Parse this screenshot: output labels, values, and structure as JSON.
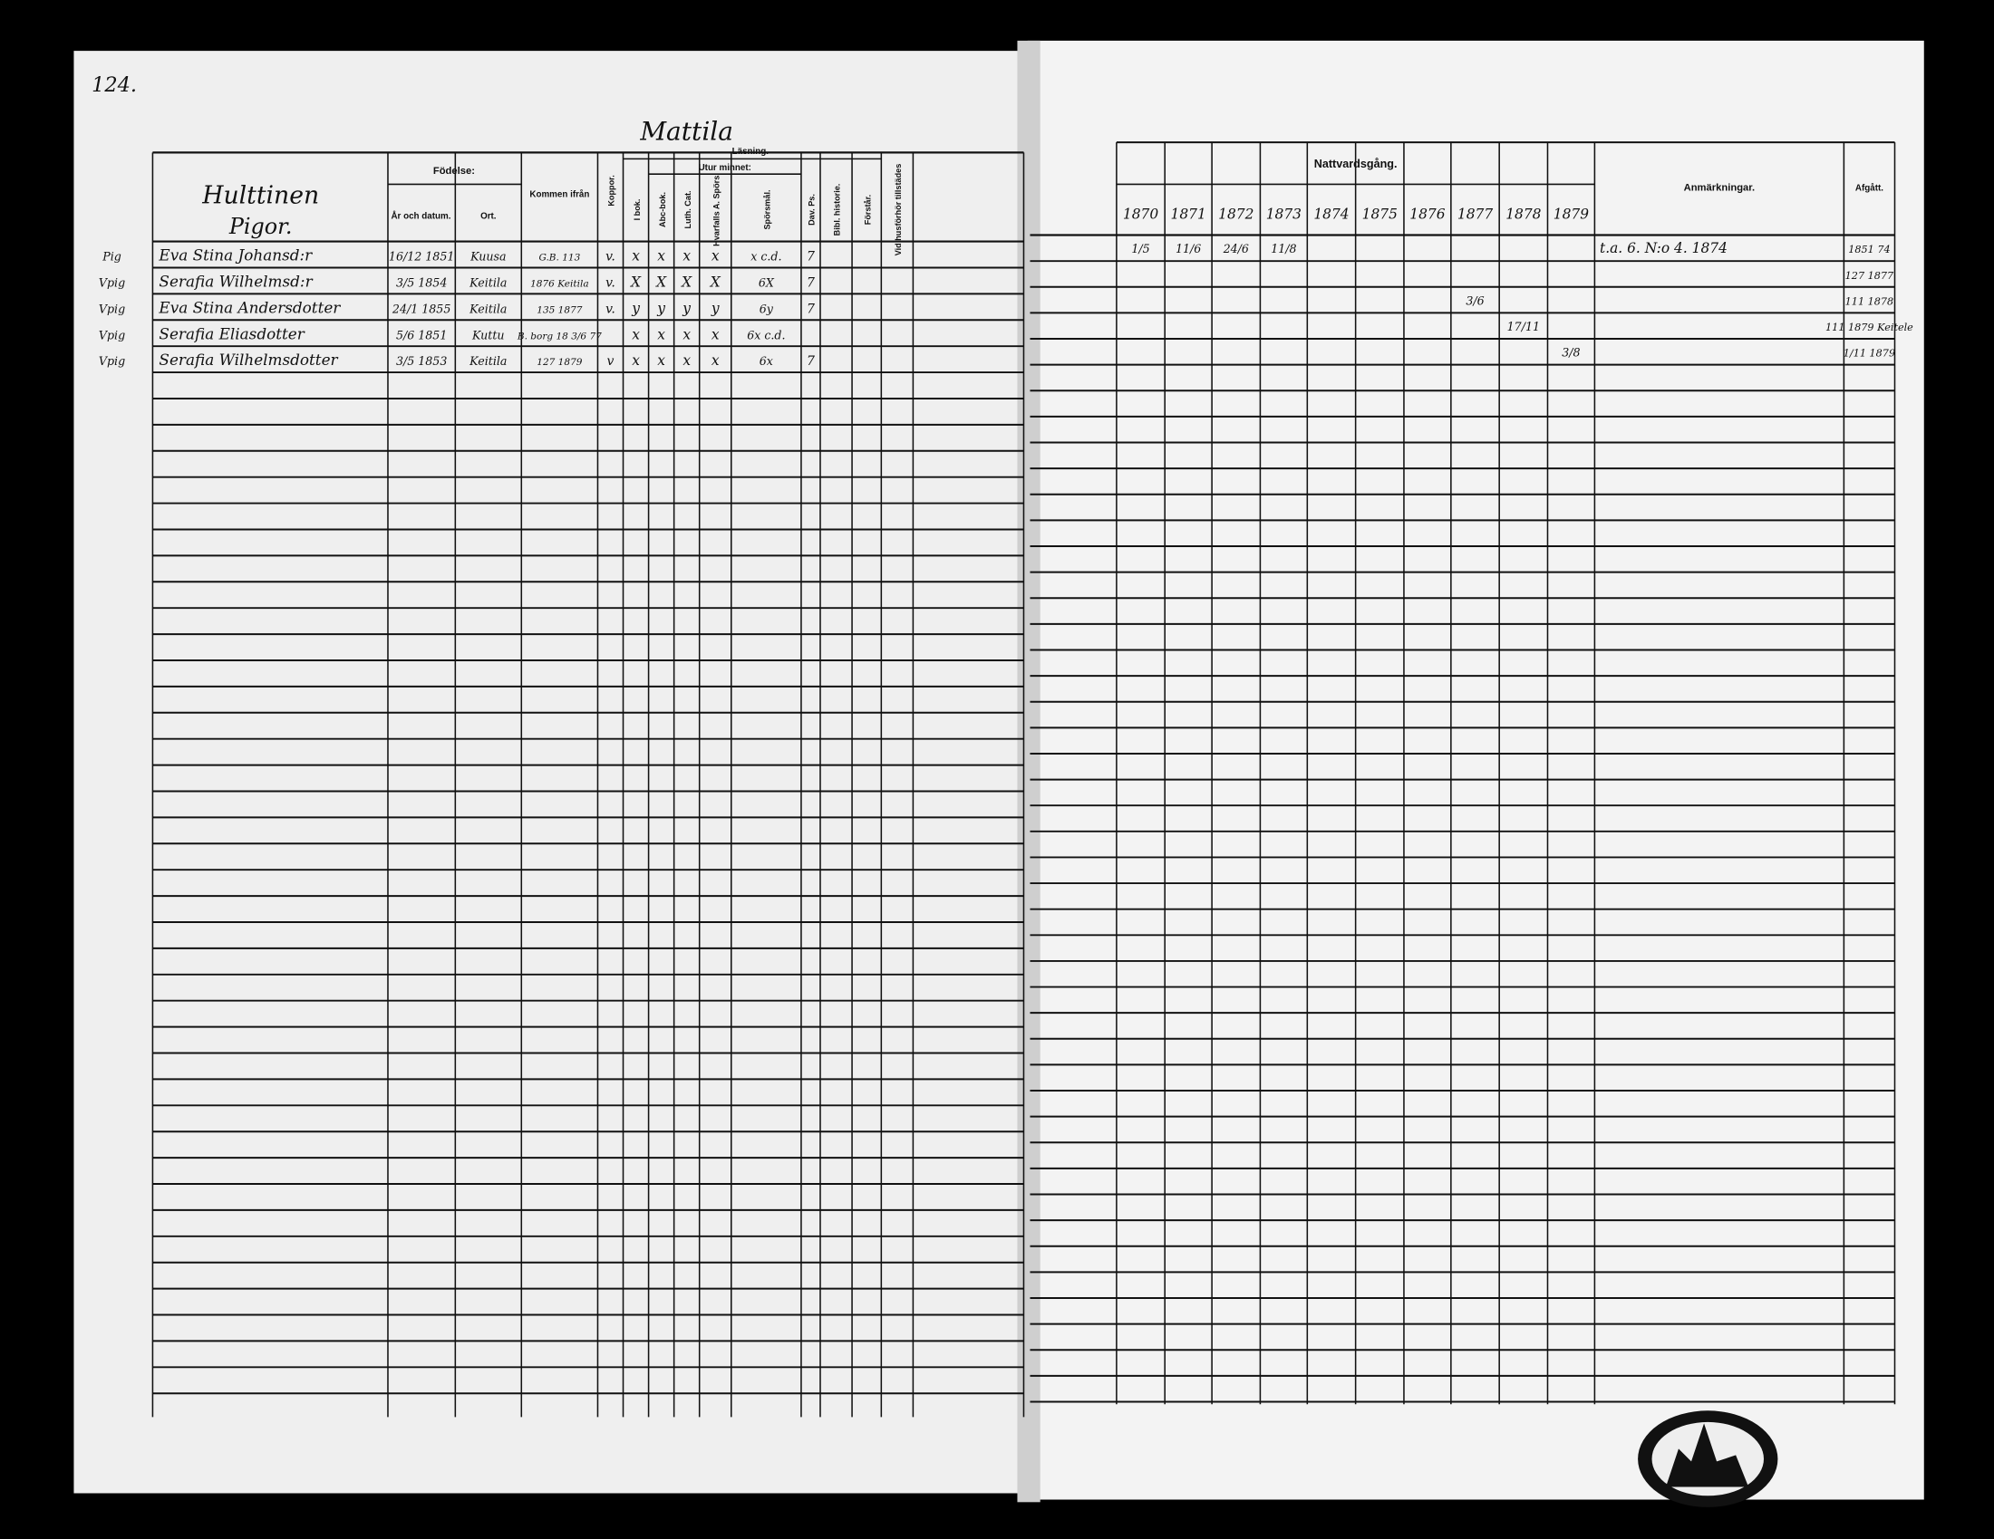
{
  "page_number": "124.",
  "farm": "Mattila",
  "left_header": {
    "household": "Hulttinen",
    "category": "Pigor."
  },
  "columns": {
    "birth": "Födelse:",
    "birth_date": "År och datum.",
    "birth_place": "Ort.",
    "came_from": "Kommen ifrån",
    "koppor": "Koppor.",
    "reading": "Läsning.",
    "from_memory": "Utur minnet:",
    "i_bok": "I bok.",
    "abc": "Abc-bok.",
    "luth": "Luth. Cat.",
    "hvarf": "Hvarfalls A. Spörs.",
    "spors": "Spörsmål.",
    "dav": "Dav. Ps.",
    "bibl": "Bibl. historie.",
    "forstar": "Förstår.",
    "husforhor": "Vid husförhör tillstädes"
  },
  "right_header": {
    "title": "Nattvardsgång.",
    "years": [
      "1870",
      "1871",
      "1872",
      "1873",
      "1874",
      "1875",
      "1876",
      "1877",
      "1878",
      "1879"
    ],
    "remarks": "Anmärkningar.",
    "departed": "Afgått."
  },
  "rows": [
    {
      "status": "Pig",
      "name": "Eva Stina Johansd:r",
      "date": "16/12 1851",
      "place": "Kuusa",
      "came_from": "G.B. 113",
      "koppor": "v.",
      "reading": [
        "x",
        "x",
        "x",
        "x"
      ],
      "spors": "x c.d.",
      "dav": "7",
      "communion": [
        "1/5",
        "11/6",
        "24/6",
        "11/8",
        null,
        null,
        null,
        null,
        null,
        null
      ],
      "remarks": "t.a. 6. N:o 4. 1874",
      "departed": "1851 74"
    },
    {
      "status": "Vpig",
      "name": "Serafia Wilhelmsd:r",
      "date": "3/5 1854",
      "place": "Keitila",
      "came_from": "1876 Keitila",
      "koppor": "v.",
      "reading": [
        "X",
        "X",
        "X",
        "X"
      ],
      "spors": "6X",
      "dav": "7",
      "communion": [
        null,
        null,
        null,
        null,
        null,
        null,
        null,
        null,
        null,
        null
      ],
      "remarks": null,
      "departed": "127 1877"
    },
    {
      "status": "Vpig",
      "name": "Eva Stina Andersdotter",
      "date": "24/1 1855",
      "place": "Keitila",
      "came_from": "135 1877",
      "koppor": "v.",
      "reading": [
        "y",
        "y",
        "y",
        "y"
      ],
      "spors": "6y",
      "dav": "7",
      "communion": [
        null,
        null,
        null,
        null,
        null,
        null,
        null,
        "3/6",
        null,
        null
      ],
      "remarks": null,
      "departed": "111 1878"
    },
    {
      "status": "Vpig",
      "name": "Serafia Eliasdotter",
      "date": "5/6 1851",
      "place": "Kuttu",
      "came_from": "B. borg 18 3/6 77",
      "koppor": null,
      "reading": [
        "x",
        "x",
        "x",
        "x"
      ],
      "spors": "6x c.d.",
      "dav": null,
      "communion": [
        null,
        null,
        null,
        null,
        null,
        null,
        null,
        null,
        "17/11",
        null
      ],
      "remarks": null,
      "departed": "111 1879 Keitele"
    },
    {
      "status": "Vpig",
      "name": "Serafia Wilhelmsdotter",
      "date": "3/5 1853",
      "place": "Keitila",
      "came_from": "127 1879",
      "koppor": "v",
      "reading": [
        "x",
        "x",
        "x",
        "x"
      ],
      "spors": "6x",
      "dav": "7",
      "communion": [
        null,
        null,
        null,
        null,
        null,
        null,
        null,
        null,
        null,
        "3/8"
      ],
      "remarks": null,
      "departed": "1/11 1879"
    }
  ]
}
